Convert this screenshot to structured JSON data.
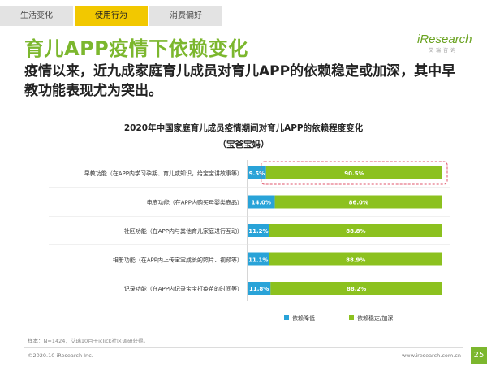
{
  "tabs": [
    {
      "label": "生活变化",
      "active": false
    },
    {
      "label": "使用行为",
      "active": true
    },
    {
      "label": "消费偏好",
      "active": false
    }
  ],
  "title": "育儿APP疫情下依赖变化",
  "logo": {
    "brand": "iResearch",
    "sub": "艾瑞咨询"
  },
  "subtitle": "疫情以来，近九成家庭育儿成员对育儿APP的依赖稳定或加深，其中早教功能表现尤为突出。",
  "chart_data": {
    "type": "bar",
    "orientation": "horizontal",
    "stacked": true,
    "percent": true,
    "title": "2020年中国家庭育儿成员疫情期间对育儿APP的依赖程度变化",
    "subtitle": "（宝爸宝妈）",
    "categories": [
      "早教功能（在APP内学习孕期、育儿或知识，给宝宝讲故事等）",
      "电商功能（在APP内购买母婴类商品）",
      "社区功能（在APP内与其他育儿家庭进行互动）",
      "相册功能（在APP内上传宝宝成长的照片、视频等）",
      "记录功能（在APP内记录宝宝打疫苗的时间等）"
    ],
    "series": [
      {
        "name": "依赖降低",
        "color": "#29a3d8",
        "values": [
          9.5,
          14.0,
          11.2,
          11.1,
          11.8
        ]
      },
      {
        "name": "依赖稳定/加深",
        "color": "#8cc11f",
        "values": [
          90.5,
          86.0,
          88.8,
          88.9,
          88.2
        ]
      }
    ],
    "xlim": [
      0,
      100
    ],
    "highlight_index": 0,
    "legend": "bottom-right"
  },
  "footnote": "样本：N=1424，艾瑞10月于iclick社区调研获得。",
  "footer": {
    "copyright": "©2020.10 iResearch Inc.",
    "url": "www.iresearch.com.cn",
    "page": "25"
  }
}
